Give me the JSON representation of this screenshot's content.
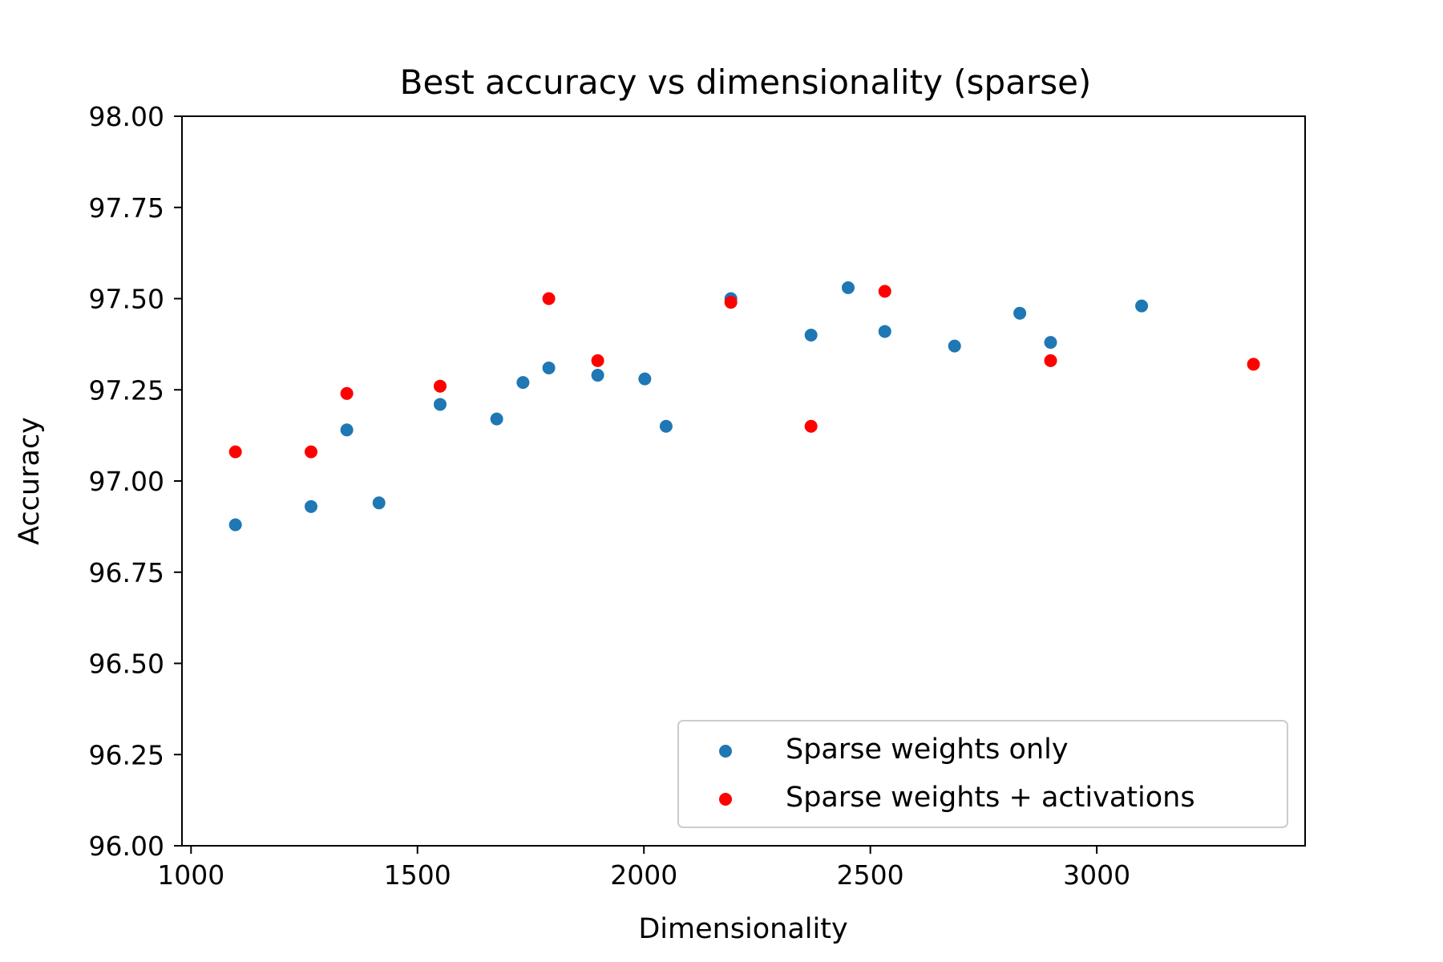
{
  "chart_data": {
    "type": "scatter",
    "title": "Best accuracy vs dimensionality  (sparse)",
    "xlabel": "Dimensionality",
    "ylabel": "Accuracy",
    "xlim": [
      980,
      3460
    ],
    "ylim": [
      96.0,
      98.0
    ],
    "xticks": [
      1000,
      1500,
      2000,
      2500,
      3000
    ],
    "xtick_labels": [
      "1000",
      "1500",
      "2000",
      "2500",
      "3000"
    ],
    "yticks": [
      96.0,
      96.25,
      96.5,
      96.75,
      97.0,
      97.25,
      97.5,
      97.75,
      98.0
    ],
    "ytick_labels": [
      "96.00",
      "96.25",
      "96.50",
      "96.75",
      "97.00",
      "97.25",
      "97.50",
      "97.75",
      "98.00"
    ],
    "grid": false,
    "legend_position": "lower-right",
    "series": [
      {
        "name": "Sparse weights only",
        "color": "#1f77b4",
        "points": [
          {
            "x": 1098,
            "y": 96.88
          },
          {
            "x": 1265,
            "y": 96.93
          },
          {
            "x": 1344,
            "y": 97.14
          },
          {
            "x": 1415,
            "y": 96.94
          },
          {
            "x": 1550,
            "y": 97.21
          },
          {
            "x": 1675,
            "y": 97.17
          },
          {
            "x": 1733,
            "y": 97.27
          },
          {
            "x": 1790,
            "y": 97.31
          },
          {
            "x": 1898,
            "y": 97.29
          },
          {
            "x": 2002,
            "y": 97.28
          },
          {
            "x": 2049,
            "y": 97.15
          },
          {
            "x": 2192,
            "y": 97.5
          },
          {
            "x": 2369,
            "y": 97.4
          },
          {
            "x": 2451,
            "y": 97.53
          },
          {
            "x": 2532,
            "y": 97.41
          },
          {
            "x": 2686,
            "y": 97.37
          },
          {
            "x": 2830,
            "y": 97.46
          },
          {
            "x": 2898,
            "y": 97.38
          },
          {
            "x": 3099,
            "y": 97.48
          }
        ]
      },
      {
        "name": "Sparse weights + activations",
        "color": "#ff0000",
        "points": [
          {
            "x": 1098,
            "y": 97.08
          },
          {
            "x": 1265,
            "y": 97.08
          },
          {
            "x": 1344,
            "y": 97.24
          },
          {
            "x": 1550,
            "y": 97.26
          },
          {
            "x": 1790,
            "y": 97.5
          },
          {
            "x": 1898,
            "y": 97.33
          },
          {
            "x": 2192,
            "y": 97.49
          },
          {
            "x": 2369,
            "y": 97.15
          },
          {
            "x": 2532,
            "y": 97.52
          },
          {
            "x": 2898,
            "y": 97.33
          },
          {
            "x": 3346,
            "y": 97.32
          }
        ]
      }
    ]
  }
}
